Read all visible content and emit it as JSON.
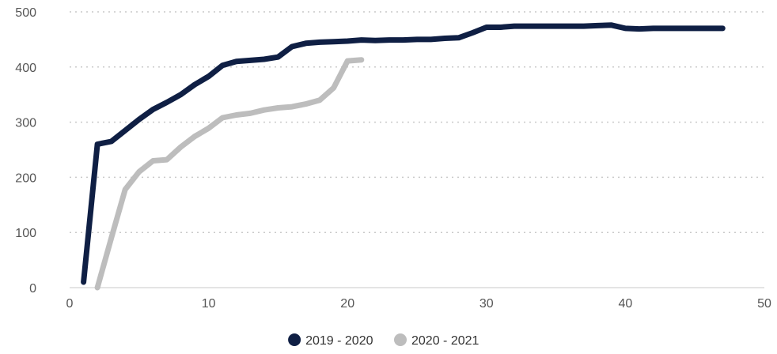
{
  "chart_data": {
    "type": "line",
    "title": "",
    "xlabel": "",
    "ylabel": "",
    "xlim": [
      0,
      50
    ],
    "ylim": [
      0,
      500
    ],
    "x_ticks": [
      0,
      10,
      20,
      30,
      40,
      50
    ],
    "y_ticks": [
      0,
      100,
      200,
      300,
      400,
      500
    ],
    "grid": true,
    "legend_position": "bottom-center",
    "series": [
      {
        "name": "2019 - 2020",
        "color": "#0f1f44",
        "x": [
          1,
          2,
          3,
          4,
          5,
          6,
          7,
          8,
          9,
          10,
          11,
          12,
          13,
          14,
          15,
          16,
          17,
          18,
          19,
          20,
          21,
          22,
          23,
          24,
          25,
          26,
          27,
          28,
          29,
          30,
          31,
          32,
          33,
          34,
          35,
          36,
          37,
          38,
          39,
          40,
          41,
          42,
          43,
          44,
          45,
          46,
          47
        ],
        "y": [
          10,
          260,
          265,
          285,
          305,
          323,
          336,
          350,
          368,
          383,
          403,
          410,
          412,
          414,
          418,
          437,
          443,
          445,
          446,
          447,
          449,
          448,
          449,
          449,
          450,
          450,
          452,
          453,
          462,
          472,
          472,
          474,
          474,
          474,
          474,
          474,
          474,
          475,
          476,
          470,
          469,
          470,
          470,
          470,
          470,
          470,
          470
        ]
      },
      {
        "name": "2020 - 2021",
        "color": "#bdbdbd",
        "x": [
          2,
          3,
          4,
          5,
          6,
          7,
          8,
          9,
          10,
          11,
          12,
          13,
          14,
          15,
          16,
          17,
          18,
          19,
          20,
          21
        ],
        "y": [
          0,
          90,
          178,
          210,
          230,
          232,
          255,
          274,
          289,
          308,
          313,
          316,
          322,
          326,
          328,
          333,
          340,
          362,
          411,
          413
        ]
      }
    ]
  }
}
